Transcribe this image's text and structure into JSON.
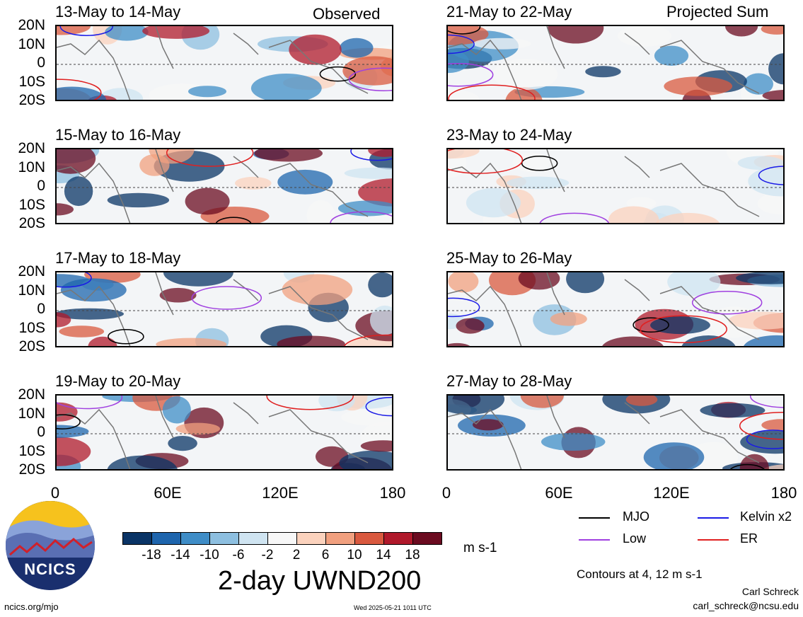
{
  "panels": [
    {
      "title": "13-May to 14-May",
      "label": "Observed"
    },
    {
      "title": "15-May to 16-May",
      "label": ""
    },
    {
      "title": "17-May to 18-May",
      "label": ""
    },
    {
      "title": "19-May to 20-May",
      "label": ""
    },
    {
      "title": "21-May to 22-May",
      "label": "Projected Sum"
    },
    {
      "title": "23-May to 24-May",
      "label": ""
    },
    {
      "title": "25-May to 26-May",
      "label": ""
    },
    {
      "title": "27-May to 28-May",
      "label": ""
    }
  ],
  "y_ticks": [
    "20N",
    "10N",
    "0",
    "10S",
    "20S"
  ],
  "x_ticks": [
    "0",
    "60E",
    "120E",
    "180"
  ],
  "colorbar": {
    "labels": [
      "-18",
      "-14",
      "-10",
      "-6",
      "-2",
      "2",
      "6",
      "10",
      "14",
      "18"
    ],
    "colors": [
      "#0a3466",
      "#1e65ad",
      "#3f8dc7",
      "#8dbfe0",
      "#cfe4f1",
      "#f7f7f7",
      "#fbd2bd",
      "#f1a07f",
      "#d9593f",
      "#b0192b",
      "#6b0b20"
    ],
    "units": "m s-1",
    "title": "2-day UWND200"
  },
  "legend": [
    {
      "name": "MJO",
      "color": "#000000"
    },
    {
      "name": "Kelvin x2",
      "color": "#1a1ae6"
    },
    {
      "name": "Low",
      "color": "#a040e0"
    },
    {
      "name": "ER",
      "color": "#e02020"
    }
  ],
  "contour_note": "Contours at 4, 12 m s-1",
  "author": {
    "name": "Carl Schreck",
    "email": "carl_schreck@ncsu.edu"
  },
  "site": "ncics.org/mjo",
  "timestamp": "Wed 2025-05-21 1011 UTC",
  "logo_text": "NCICS"
}
